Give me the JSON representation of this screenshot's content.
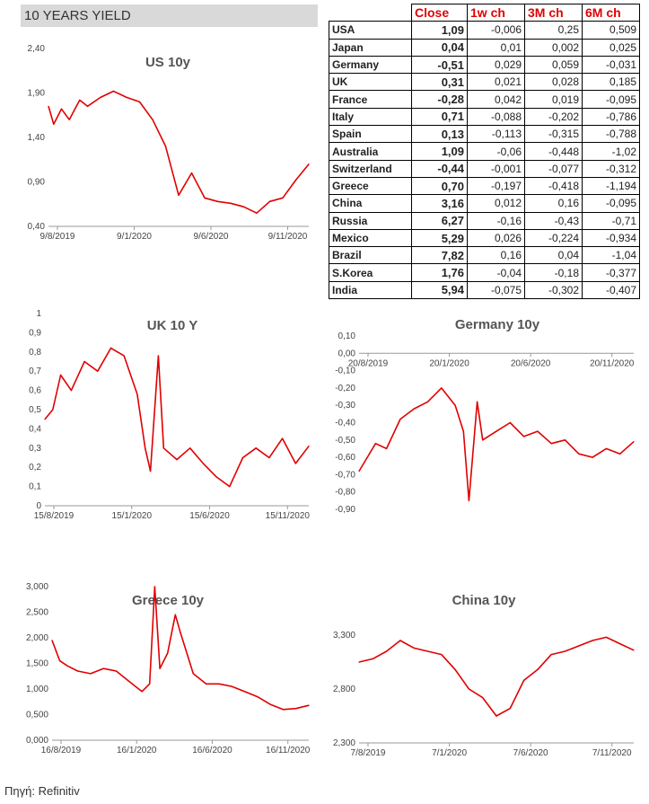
{
  "page_title": "10 YEARS YIELD",
  "source": "Πηγή: Refinitiv",
  "table": {
    "headers": [
      "",
      "Close",
      "1w ch",
      "3M ch",
      "6M ch"
    ],
    "rows": [
      [
        "USA",
        "1,09",
        "-0,006",
        "0,25",
        "0,509"
      ],
      [
        "Japan",
        "0,04",
        "0,01",
        "0,002",
        "0,025"
      ],
      [
        "Germany",
        "-0,51",
        "0,029",
        "0,059",
        "-0,031"
      ],
      [
        "UK",
        "0,31",
        "0,021",
        "0,028",
        "0,185"
      ],
      [
        "France",
        "-0,28",
        "0,042",
        "0,019",
        "-0,095"
      ],
      [
        "Italy",
        "0,71",
        "-0,088",
        "-0,202",
        "-0,786"
      ],
      [
        "Spain",
        "0,13",
        "-0,113",
        "-0,315",
        "-0,788"
      ],
      [
        "Australia",
        "1,09",
        "-0,06",
        "-0,448",
        "-1,02"
      ],
      [
        "Switzerland",
        "-0,44",
        "-0,001",
        "-0,077",
        "-0,312"
      ],
      [
        "Greece",
        "0,70",
        "-0,197",
        "-0,418",
        "-1,194"
      ],
      [
        "China",
        "3,16",
        "0,012",
        "0,16",
        "-0,095"
      ],
      [
        "Russia",
        "6,27",
        "-0,16",
        "-0,43",
        "-0,71"
      ],
      [
        "Mexico",
        "5,29",
        "0,026",
        "-0,224",
        "-0,934"
      ],
      [
        "Brazil",
        "7,82",
        "0,16",
        "0,04",
        "-1,04"
      ],
      [
        "S.Korea",
        "1,76",
        "-0,04",
        "-0,18",
        "-0,377"
      ],
      [
        "India",
        "5,94",
        "-0,075",
        "-0,302",
        "-0,407"
      ]
    ]
  },
  "line_color": "#e00000",
  "chart_data": [
    {
      "id": "us",
      "type": "line",
      "title": "US 10y",
      "ylim": [
        0.4,
        2.4
      ],
      "yticks": [
        "2,40",
        "1,90",
        "1,40",
        "0,90",
        "0,40"
      ],
      "xticks": [
        "9/8/2019",
        "9/1/2020",
        "9/6/2020",
        "9/11/2020"
      ],
      "x": [
        0,
        2,
        5,
        8,
        12,
        15,
        20,
        25,
        30,
        35,
        40,
        45,
        50,
        55,
        60,
        65,
        70,
        75,
        80,
        85,
        90,
        95,
        100
      ],
      "values": [
        1.75,
        1.55,
        1.72,
        1.6,
        1.82,
        1.75,
        1.85,
        1.92,
        1.85,
        1.8,
        1.6,
        1.3,
        0.75,
        1.0,
        0.72,
        0.68,
        0.66,
        0.62,
        0.55,
        0.68,
        0.72,
        0.92,
        1.1
      ]
    },
    {
      "id": "uk",
      "type": "line",
      "title": "UK 10 Y",
      "ylim": [
        0,
        1
      ],
      "yticks": [
        "1",
        "0,9",
        "0,8",
        "0,7",
        "0,6",
        "0,5",
        "0,4",
        "0,3",
        "0,2",
        "0,1",
        "0"
      ],
      "xticks": [
        "15/8/2019",
        "15/1/2020",
        "15/6/2020",
        "15/11/2020"
      ],
      "x": [
        0,
        3,
        6,
        10,
        15,
        20,
        25,
        30,
        35,
        38,
        40,
        43,
        45,
        50,
        55,
        60,
        65,
        70,
        75,
        80,
        85,
        90,
        95,
        100
      ],
      "values": [
        0.45,
        0.5,
        0.68,
        0.6,
        0.75,
        0.7,
        0.82,
        0.78,
        0.58,
        0.3,
        0.18,
        0.78,
        0.3,
        0.24,
        0.3,
        0.22,
        0.15,
        0.1,
        0.25,
        0.3,
        0.25,
        0.35,
        0.22,
        0.31
      ]
    },
    {
      "id": "germany",
      "type": "line",
      "title": "Germany 10y",
      "ylim": [
        -0.9,
        0.1
      ],
      "yticks": [
        "0,10",
        "0,00",
        "-0,10",
        "-0,20",
        "-0,30",
        "-0,40",
        "-0,50",
        "-0,60",
        "-0,70",
        "-0,80",
        "-0,90"
      ],
      "xticks": [
        "20/8/2019",
        "20/1/2020",
        "20/6/2020",
        "20/11/2020"
      ],
      "x": [
        0,
        3,
        6,
        10,
        15,
        20,
        25,
        30,
        35,
        38,
        40,
        43,
        45,
        50,
        55,
        60,
        65,
        70,
        75,
        80,
        85,
        90,
        95,
        100
      ],
      "values": [
        -0.68,
        -0.6,
        -0.52,
        -0.55,
        -0.38,
        -0.32,
        -0.28,
        -0.2,
        -0.3,
        -0.45,
        -0.85,
        -0.28,
        -0.5,
        -0.45,
        -0.4,
        -0.48,
        -0.45,
        -0.52,
        -0.5,
        -0.58,
        -0.6,
        -0.55,
        -0.58,
        -0.51
      ]
    },
    {
      "id": "greece",
      "type": "line",
      "title": "Greece 10y",
      "ylim": [
        0,
        3.0
      ],
      "yticks": [
        "3,000",
        "2,500",
        "2,000",
        "1,500",
        "1,000",
        "0,500",
        "0,000"
      ],
      "xticks": [
        "16/8/2019",
        "16/1/2020",
        "16/6/2020",
        "16/11/2020"
      ],
      "x": [
        0,
        3,
        6,
        10,
        15,
        20,
        25,
        30,
        35,
        38,
        40,
        42,
        45,
        48,
        50,
        55,
        60,
        65,
        70,
        75,
        80,
        85,
        90,
        95,
        100
      ],
      "values": [
        1.95,
        1.55,
        1.45,
        1.35,
        1.3,
        1.4,
        1.35,
        1.15,
        0.95,
        1.1,
        3.0,
        1.4,
        1.7,
        2.45,
        2.1,
        1.3,
        1.1,
        1.1,
        1.05,
        0.95,
        0.85,
        0.7,
        0.6,
        0.62,
        0.68
      ]
    },
    {
      "id": "china",
      "type": "line",
      "title": "China 10y",
      "ylim": [
        2.3,
        3.3
      ],
      "yticks": [
        "3,300",
        "2,800",
        "2,300"
      ],
      "xticks": [
        "7/8/2019",
        "7/1/2020",
        "7/6/2020",
        "7/11/2020"
      ],
      "x": [
        0,
        5,
        10,
        15,
        20,
        25,
        30,
        35,
        40,
        45,
        50,
        55,
        60,
        65,
        70,
        75,
        80,
        85,
        90,
        95,
        100
      ],
      "values": [
        3.05,
        3.08,
        3.15,
        3.25,
        3.18,
        3.15,
        3.12,
        2.98,
        2.8,
        2.72,
        2.55,
        2.62,
        2.88,
        2.98,
        3.12,
        3.15,
        3.2,
        3.25,
        3.28,
        3.22,
        3.16
      ]
    }
  ]
}
